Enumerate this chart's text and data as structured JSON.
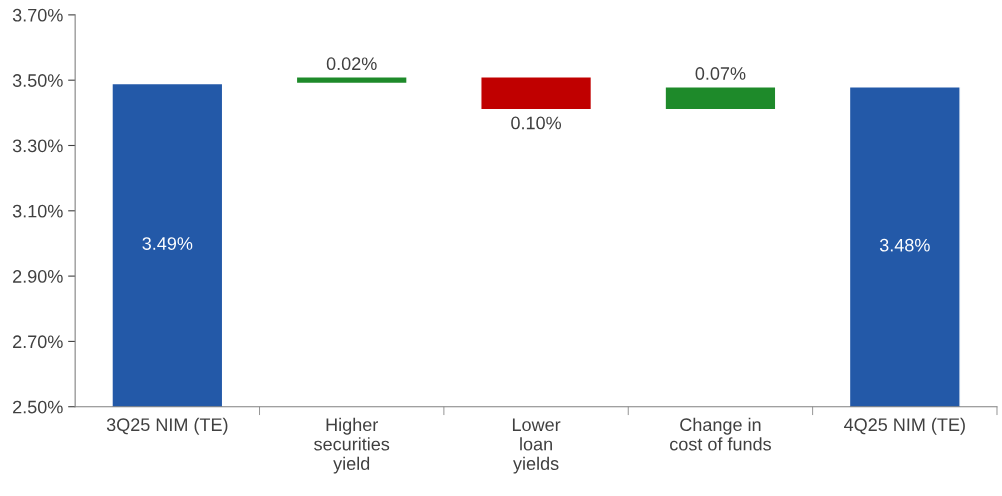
{
  "chart_data": {
    "type": "bar",
    "categories": [
      "3Q25 NIM (TE)",
      "Higher\nsecurities\nyield",
      "Lower\nloan\nyields",
      "Change in\ncost of funds",
      "4Q25 NIM (TE)"
    ],
    "values": [
      3.49,
      0.02,
      -0.1,
      0.07,
      3.48
    ],
    "base": [
      null,
      3.49,
      3.51,
      3.41,
      null
    ],
    "colors": [
      "#2359a8",
      "#1e8a2a",
      "#c00000",
      "#1e8a2a",
      "#2359a8"
    ],
    "value_labels": [
      "3.49%",
      "0.02%",
      "0.10%",
      "0.07%",
      "3.48%"
    ],
    "ylim": [
      2.5,
      3.7
    ],
    "yticks": [
      {
        "value": 2.5,
        "label": "2.50%"
      },
      {
        "value": 2.7,
        "label": "2.70%"
      },
      {
        "value": 2.9,
        "label": "2.90%"
      },
      {
        "value": 3.1,
        "label": "3.10%"
      },
      {
        "value": 3.3,
        "label": "3.30%"
      },
      {
        "value": 3.5,
        "label": "3.50%"
      },
      {
        "value": 3.7,
        "label": "3.70%"
      }
    ],
    "grid": false,
    "legend": false
  }
}
